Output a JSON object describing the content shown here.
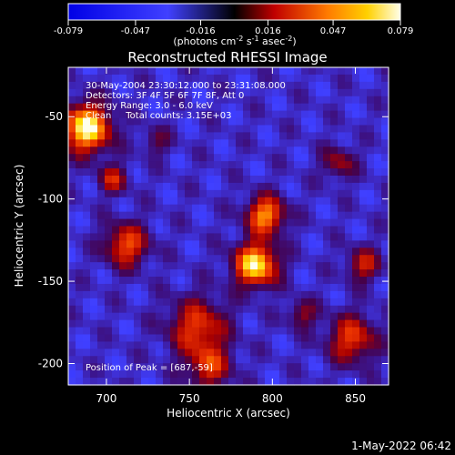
{
  "chart_data": {
    "type": "heatmap",
    "title": "Reconstructed RHESSI Image",
    "xlabel": "Heliocentric X (arcsec)",
    "ylabel": "Heliocentric Y (arcsec)",
    "xlim": [
      677,
      870
    ],
    "ylim": [
      -213,
      -20
    ],
    "x_ticks": [
      700,
      750,
      800,
      850
    ],
    "y_ticks": [
      -50,
      -100,
      -150,
      -200
    ],
    "colorbar": {
      "ticks": [
        "-0.079",
        "-0.047",
        "-0.016",
        "0.016",
        "0.047",
        "0.079"
      ],
      "range": [
        -0.079,
        0.079
      ],
      "unit_label": "(photons cm",
      "unit_sup1": "-2",
      "unit_mid1": " s",
      "unit_sup2": "-1",
      "unit_mid2": " asec",
      "unit_sup3": "-2",
      "unit_end": ")"
    },
    "annotations": {
      "time_range": "30-May-2004 23:30:12.000 to 23:31:08.000",
      "detectors": "Detectors: 3F 4F 5F 6F 7F 8F, Att 0",
      "energy": "Energy Range: 3.0 - 6.0 keV",
      "clean": "Clean     Total counts: 3.15E+03",
      "peak": "Position of Peak = [687,-59]"
    },
    "peak": [
      687,
      -59
    ],
    "sources": [
      {
        "x": 688,
        "y": -57,
        "sigma": 10,
        "amp": 1.0
      },
      {
        "x": 790,
        "y": -140,
        "sigma": 9,
        "amp": 0.95
      },
      {
        "x": 796,
        "y": -110,
        "sigma": 8,
        "amp": 0.75
      },
      {
        "x": 712,
        "y": -128,
        "sigma": 9,
        "amp": 0.6
      },
      {
        "x": 704,
        "y": -88,
        "sigma": 6,
        "amp": 0.45
      },
      {
        "x": 755,
        "y": -178,
        "sigma": 12,
        "amp": 0.55
      },
      {
        "x": 762,
        "y": -202,
        "sigma": 9,
        "amp": 0.5
      },
      {
        "x": 848,
        "y": -185,
        "sigma": 10,
        "amp": 0.55
      },
      {
        "x": 855,
        "y": -140,
        "sigma": 7,
        "amp": 0.45
      },
      {
        "x": 840,
        "y": -78,
        "sigma": 7,
        "amp": 0.35
      },
      {
        "x": 730,
        "y": -65,
        "sigma": 6,
        "amp": 0.25
      },
      {
        "x": 818,
        "y": -170,
        "sigma": 6,
        "amp": 0.35
      }
    ],
    "timestamp": "1-May-2022 06:42"
  }
}
